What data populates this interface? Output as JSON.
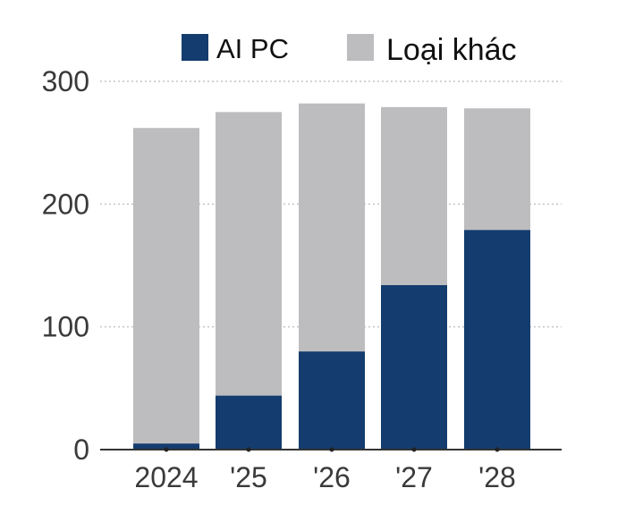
{
  "chart_data": {
    "type": "bar",
    "stacked": true,
    "categories": [
      "2024",
      "'25",
      "'26",
      "'27",
      "'28"
    ],
    "series": [
      {
        "name": "AI PC",
        "color": "#143c6e",
        "values": [
          5,
          44,
          80,
          134,
          179
        ]
      },
      {
        "name": "Loại khác",
        "color": "#bdbdc0",
        "values": [
          257,
          231,
          202,
          145,
          99
        ]
      }
    ],
    "ylim": [
      0,
      300
    ],
    "yticks": [
      0,
      100,
      200,
      300
    ],
    "grid": true,
    "legend": "top"
  }
}
